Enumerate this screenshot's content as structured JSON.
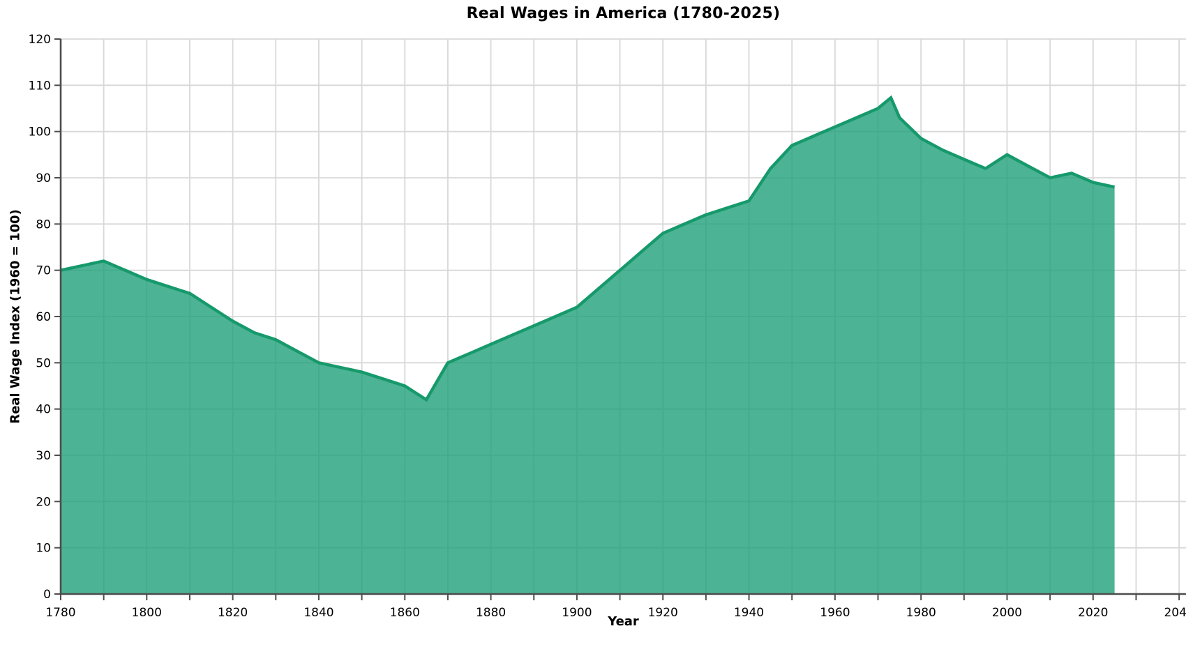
{
  "page": {
    "background": "#FFFFFF"
  },
  "chart_data": {
    "type": "area",
    "title": "Real Wages in America (1780-2025)",
    "xlabel": "Year",
    "ylabel": "Real Wage Index (1960 = 100)",
    "grid": true,
    "legend": false,
    "xlim": [
      1780,
      2041.6
    ],
    "ylim": [
      0,
      120
    ],
    "x_grid_step": 10,
    "y_grid_step": 10,
    "x_tick_labels": [
      "1780",
      "1800",
      "1820",
      "1840",
      "1860",
      "1880",
      "1900",
      "1920",
      "1940",
      "1960",
      "1980",
      "2000",
      "2020",
      "2040"
    ],
    "y_tick_labels": [
      "0",
      "10",
      "20",
      "30",
      "40",
      "50",
      "60",
      "70",
      "80",
      "90",
      "100",
      "110",
      "120"
    ],
    "series": [
      {
        "name": "Real wage index (1960 = 100)",
        "x": [
          1780,
          1785,
          1790,
          1795,
          1800,
          1805,
          1810,
          1815,
          1820,
          1825,
          1830,
          1835,
          1840,
          1845,
          1850,
          1855,
          1860,
          1865,
          1870,
          1875,
          1880,
          1885,
          1890,
          1895,
          1900,
          1905,
          1910,
          1915,
          1920,
          1925,
          1930,
          1935,
          1940,
          1945,
          1950,
          1955,
          1960,
          1965,
          1970,
          1973,
          1975,
          1980,
          1985,
          1990,
          1995,
          2000,
          2005,
          2010,
          2015,
          2020,
          2025
        ],
        "y": [
          70,
          71,
          72,
          70,
          68,
          66.5,
          65,
          62,
          59,
          56.5,
          55,
          52.5,
          50,
          49,
          48,
          46.5,
          45,
          42,
          50,
          52,
          54,
          56,
          58,
          60,
          62,
          66,
          70,
          74,
          78,
          80,
          82,
          83.5,
          85,
          92,
          97,
          99,
          101,
          103,
          105,
          107.3,
          103,
          98.5,
          96,
          94,
          92,
          95,
          92.5,
          90,
          91,
          89,
          88
        ]
      }
    ],
    "colors": {
      "line": "#16996B",
      "fill": "#1B9E77",
      "fill_opacity": 0.78,
      "grid": "#D8D8D8",
      "spine": "#4D4D4D",
      "tick_mark": "#4D4D4D",
      "text": "#000000",
      "background": "#FFFFFF"
    }
  }
}
